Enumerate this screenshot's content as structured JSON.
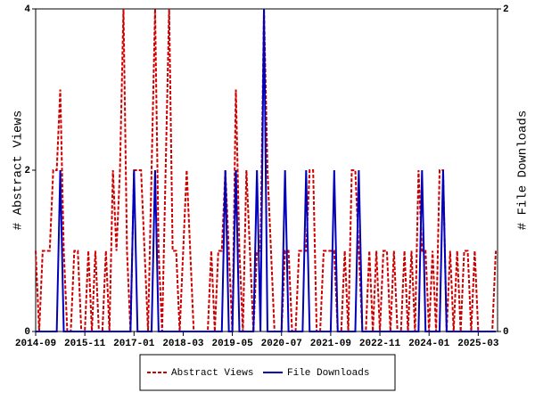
{
  "chart_data": {
    "type": "line",
    "ylabel": "# Abstract Views",
    "y2label": "# File Downloads",
    "x": [
      "2014-09",
      "2014-10",
      "2014-11",
      "2014-12",
      "2015-01",
      "2015-02",
      "2015-03",
      "2015-04",
      "2015-05",
      "2015-06",
      "2015-07",
      "2015-08",
      "2015-09",
      "2015-10",
      "2015-11",
      "2015-12",
      "2016-01",
      "2016-02",
      "2016-03",
      "2016-04",
      "2016-05",
      "2016-06",
      "2016-07",
      "2016-08",
      "2016-09",
      "2016-10",
      "2016-11",
      "2016-12",
      "2017-01",
      "2017-02",
      "2017-03",
      "2017-04",
      "2017-05",
      "2017-06",
      "2017-07",
      "2017-08",
      "2017-09",
      "2017-10",
      "2017-11",
      "2017-12",
      "2018-01",
      "2018-02",
      "2018-03",
      "2018-04",
      "2018-05",
      "2018-06",
      "2018-07",
      "2018-08",
      "2018-09",
      "2018-10",
      "2018-11",
      "2018-12",
      "2019-01",
      "2019-02",
      "2019-03",
      "2019-04",
      "2019-05",
      "2019-06",
      "2019-07",
      "2019-08",
      "2019-09",
      "2019-10",
      "2019-11",
      "2019-12",
      "2020-01",
      "2020-02",
      "2020-03",
      "2020-04",
      "2020-05",
      "2020-06",
      "2020-07",
      "2020-08",
      "2020-09",
      "2020-10",
      "2020-11",
      "2020-12",
      "2021-01",
      "2021-02",
      "2021-03",
      "2021-04",
      "2021-05",
      "2021-06",
      "2021-07",
      "2021-08",
      "2021-09",
      "2021-10",
      "2021-11",
      "2021-12",
      "2022-01",
      "2022-02",
      "2022-03",
      "2022-04",
      "2022-05",
      "2022-06",
      "2022-07",
      "2022-08",
      "2022-09",
      "2022-10",
      "2022-11",
      "2022-12",
      "2023-01",
      "2023-02",
      "2023-03",
      "2023-04",
      "2023-05",
      "2023-06",
      "2023-07",
      "2023-08",
      "2023-09",
      "2023-10",
      "2023-11",
      "2023-12",
      "2024-01",
      "2024-02",
      "2024-03",
      "2024-04",
      "2024-05",
      "2024-06",
      "2024-07",
      "2024-08",
      "2024-09",
      "2024-10",
      "2024-11",
      "2024-12",
      "2025-01",
      "2025-02",
      "2025-03",
      "2025-04",
      "2025-05",
      "2025-06",
      "2025-07",
      "2025-08"
    ],
    "xticks": [
      "2014-09",
      "2015-11",
      "2017-01",
      "2018-03",
      "2019-05",
      "2020-07",
      "2021-09",
      "2022-11",
      "2024-01",
      "2025-03"
    ],
    "ylim": [
      0,
      4
    ],
    "yticks": [
      0,
      2,
      4
    ],
    "y2lim": [
      0,
      2
    ],
    "y2ticks": [
      0,
      2
    ],
    "series": [
      {
        "name": "Abstract Views",
        "color": "#cc0000",
        "values": [
          1,
          0,
          1,
          1,
          1,
          2,
          2,
          3,
          1,
          0,
          0,
          1,
          1,
          0,
          0,
          1,
          0,
          1,
          0,
          0,
          1,
          0,
          2,
          1,
          2,
          4,
          1,
          0,
          2,
          2,
          2,
          1,
          0,
          2,
          4,
          1,
          0,
          2,
          4,
          1,
          1,
          0,
          1,
          2,
          1,
          0,
          0,
          0,
          0,
          0,
          1,
          0,
          1,
          1,
          2,
          1,
          0,
          3,
          1,
          0,
          2,
          1,
          0,
          1,
          1,
          4,
          2,
          1,
          0,
          0,
          0,
          1,
          1,
          0,
          0,
          1,
          1,
          1,
          2,
          2,
          0,
          0,
          1,
          1,
          1,
          1,
          0,
          0,
          1,
          0,
          2,
          2,
          1,
          0,
          0,
          1,
          0,
          1,
          0,
          1,
          1,
          0,
          1,
          0,
          0,
          1,
          0,
          1,
          0,
          2,
          1,
          1,
          0,
          1,
          0,
          2,
          2,
          0,
          1,
          0,
          1,
          0,
          1,
          1,
          0,
          1,
          0,
          0,
          0,
          0,
          0,
          1
        ]
      },
      {
        "name": "File Downloads",
        "color": "#0000bb",
        "axis": "y2",
        "values": [
          0,
          0,
          0,
          0,
          0,
          0,
          0,
          1,
          0,
          0,
          0,
          0,
          0,
          0,
          0,
          0,
          0,
          0,
          0,
          0,
          0,
          0,
          0,
          0,
          0,
          0,
          0,
          0,
          1,
          0,
          0,
          0,
          0,
          0,
          1,
          0,
          0,
          0,
          0,
          0,
          0,
          0,
          0,
          0,
          0,
          0,
          0,
          0,
          0,
          0,
          0,
          0,
          0,
          0,
          1,
          0,
          0,
          1,
          0,
          0,
          0,
          0,
          0,
          1,
          0,
          2,
          0,
          0,
          0,
          0,
          0,
          1,
          0,
          0,
          0,
          0,
          0,
          1,
          0,
          0,
          0,
          0,
          0,
          0,
          0,
          1,
          0,
          0,
          0,
          0,
          0,
          0,
          1,
          0,
          0,
          0,
          0,
          0,
          0,
          0,
          0,
          0,
          0,
          0,
          0,
          0,
          0,
          0,
          0,
          0,
          1,
          0,
          0,
          0,
          0,
          0,
          1,
          0,
          0,
          0,
          0,
          0,
          0,
          0,
          0,
          0,
          0,
          0,
          0,
          0,
          0,
          0
        ]
      }
    ]
  }
}
